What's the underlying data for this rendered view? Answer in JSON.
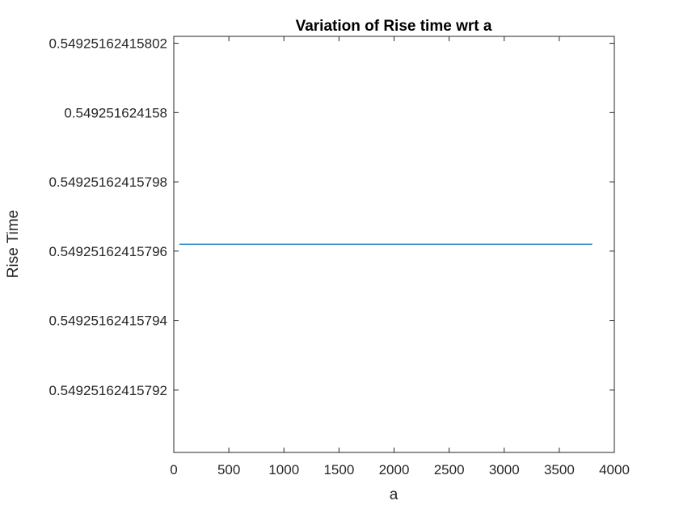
{
  "chart_data": {
    "type": "line",
    "title": "Variation of Rise time wrt a",
    "xlabel": "a",
    "ylabel": "Rise Time",
    "xlim": [
      0,
      4000
    ],
    "ylim": [
      0.549251624157902,
      0.549251624158022
    ],
    "x_ticks": [
      0,
      500,
      1000,
      1500,
      2000,
      2500,
      3000,
      3500,
      4000
    ],
    "x_tick_labels": [
      "0",
      "500",
      "1000",
      "1500",
      "2000",
      "2500",
      "3000",
      "3500",
      "4000"
    ],
    "y_ticks": [
      0.54925162415792,
      0.54925162415794,
      0.54925162415796,
      0.54925162415798,
      0.549251624158,
      0.54925162415802
    ],
    "y_tick_labels": [
      "0.54925162415792",
      "0.54925162415794",
      "0.54925162415796",
      "0.54925162415798",
      "0.549251624158",
      "0.54925162415802"
    ],
    "grid": false,
    "line_color": "#0072BD",
    "series": [
      {
        "x": [
          50,
          200,
          400,
          600,
          800,
          1000,
          1150,
          1300,
          1500,
          1700,
          1900,
          2100,
          2300,
          2500,
          2700,
          2900,
          3100,
          3300,
          3500,
          3700,
          3800
        ],
        "values": [
          0.549251624157962,
          0.549251624157962,
          0.549251624157962,
          0.549251624157962,
          0.549251624157962,
          0.549251624157962,
          0.549251624157962,
          0.549251624157962,
          0.549251624157962,
          0.549251624157962,
          0.549251624157962,
          0.549251624157962,
          0.549251624157962,
          0.549251624157962,
          0.549251624157962,
          0.549251624157962,
          0.549251624157962,
          0.549251624157962,
          0.549251624157962,
          0.549251624157962,
          0.549251624157962
        ]
      }
    ]
  }
}
